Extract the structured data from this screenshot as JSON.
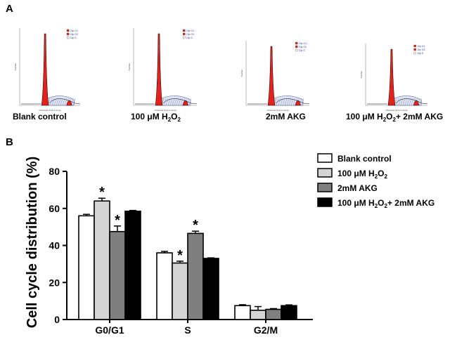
{
  "panel_a": {
    "label": "A",
    "histograms": [
      {
        "caption": "Blank control",
        "legend": [
          "Dip G1",
          "Dip G2",
          "Dip S"
        ],
        "ylabel": "Number",
        "xlabel": "Channels (FL2-A-Area)"
      },
      {
        "caption_prefix": "100 μM H",
        "caption_sub": "2",
        "caption_mid": "O",
        "caption_sub2": "2",
        "legend": [
          "Dip G1",
          "Dip G2",
          "Dip S"
        ],
        "ylabel": "Number",
        "xlabel": "Channels (FL2-A-Area)"
      },
      {
        "caption": "2mM AKG",
        "legend": [
          "Dip G1",
          "Dip G2",
          "Dip S"
        ],
        "ylabel": "Number",
        "xlabel": "Channels (FL2-A-Area)"
      },
      {
        "caption_prefix": "100 μM H",
        "caption_sub": "2",
        "caption_mid": "O",
        "caption_sub2": "2",
        "caption_suffix": "+ 2mM AKG",
        "legend": [
          "Dip G1",
          "Dip G2",
          "Dip S"
        ],
        "ylabel": "Number",
        "xlabel": "Channels (FL2-A-Area)"
      }
    ]
  },
  "panel_b": {
    "label": "B"
  },
  "chart_data": {
    "type": "bar",
    "title": "",
    "xlabel": "",
    "ylabel": "Cell cycle distribution (%)",
    "ylim": [
      0,
      80
    ],
    "yticks": [
      "0",
      "20",
      "40",
      "60",
      "80"
    ],
    "categories": [
      "G0/G1",
      "S",
      "G2/M"
    ],
    "series": [
      {
        "name": "Blank control",
        "label_main": "Blank control",
        "color": "#ffffff",
        "values": [
          56,
          36,
          7.5
        ],
        "errors": [
          0.8,
          0.8,
          0.5
        ]
      },
      {
        "name": "100 μM H2O2",
        "label_main": "100 μM H",
        "label_sub": "2",
        "label_mid": "O",
        "label_sub2": "2",
        "color": "#d4d4d4",
        "values": [
          64,
          30.5,
          5
        ],
        "errors": [
          1.5,
          1.0,
          2.0
        ]
      },
      {
        "name": "2mM AKG",
        "label_main": "2mM AKG",
        "color": "#7f7f7f",
        "values": [
          47.5,
          46.5,
          5.5
        ],
        "errors": [
          3.0,
          1.2,
          0.4
        ]
      },
      {
        "name": "100 μM H2O2+ 2mM AKG",
        "label_main": "100 μM H",
        "label_sub": "2",
        "label_mid": "O",
        "label_sub2": "2",
        "label_suffix": "+ 2mM AKG",
        "color": "#000000",
        "values": [
          58.5,
          33,
          7.5
        ],
        "errors": [
          0.4,
          0.3,
          0.4
        ]
      }
    ],
    "significance_marker": "*",
    "significant": [
      [
        0,
        1
      ],
      [
        0,
        2
      ],
      [
        1,
        1
      ],
      [
        1,
        2
      ]
    ]
  }
}
